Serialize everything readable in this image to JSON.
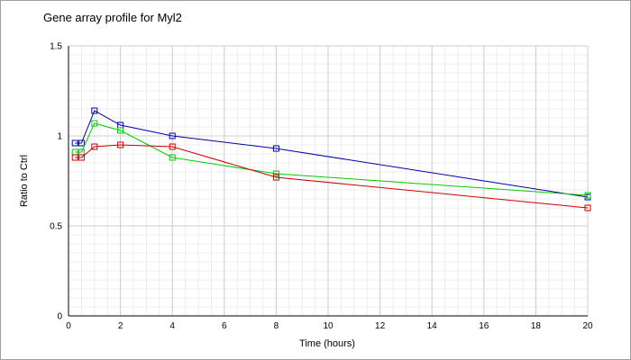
{
  "chart_data": {
    "type": "line",
    "title": "Gene array profile for Myl2",
    "xlabel": "Time (hours)",
    "ylabel": "Ratio to Ctrl",
    "xlim": [
      0,
      20
    ],
    "ylim": [
      0,
      1.5
    ],
    "x_ticks": [
      0,
      2,
      4,
      6,
      8,
      10,
      12,
      14,
      16,
      18,
      20
    ],
    "y_ticks": [
      0,
      0.5,
      1,
      1.5
    ],
    "y_tick_labels": [
      "0",
      "0.5",
      "1",
      "1.5"
    ],
    "grid": true,
    "legend": "none",
    "marker": "square",
    "series": [
      {
        "color": "#0000aa",
        "x": [
          0.25,
          0.5,
          1,
          2,
          4,
          8,
          20
        ],
        "y": [
          0.96,
          0.96,
          1.14,
          1.06,
          1.0,
          0.93,
          0.66
        ]
      },
      {
        "color": "#00cc00",
        "x": [
          0.25,
          0.5,
          1,
          2,
          4,
          8,
          20
        ],
        "y": [
          0.91,
          0.91,
          1.07,
          1.03,
          0.88,
          0.79,
          0.67
        ]
      },
      {
        "color": "#cc0000",
        "x": [
          0.25,
          0.5,
          1,
          2,
          4,
          8,
          20
        ],
        "y": [
          0.88,
          0.88,
          0.94,
          0.95,
          0.94,
          0.77,
          0.6
        ]
      }
    ]
  }
}
